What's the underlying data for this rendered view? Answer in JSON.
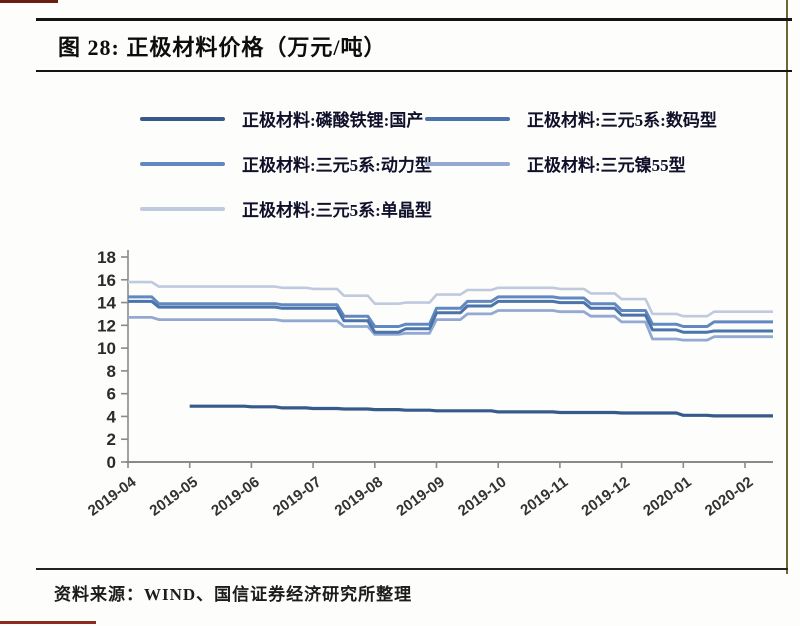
{
  "page": {
    "title": "图 28:  正极材料价格（万元/吨）",
    "source_text": "资料来源：WIND、国信证券经济研究所整理"
  },
  "legend": {
    "items": [
      {
        "label": "正极材料:磷酸铁锂:国产",
        "color": "#365a8c"
      },
      {
        "label": "正极材料:三元5系:数码型",
        "color": "#4a74ab"
      },
      {
        "label": "正极材料:三元5系:动力型",
        "color": "#6189c0"
      },
      {
        "label": "正极材料:三元镍55型",
        "color": "#93a9d1"
      },
      {
        "label": "正极材料:三元5系:单晶型",
        "color": "#bfcade"
      }
    ]
  },
  "chart_data": {
    "type": "line",
    "title": "正极材料价格（万元/吨）",
    "ylabel": "价格（万元/吨）",
    "xlabel": "",
    "ylim": [
      0,
      18
    ],
    "y_ticks": [
      0,
      2,
      4,
      6,
      8,
      10,
      12,
      14,
      16,
      18
    ],
    "x_tick_labels": [
      "2019-04",
      "2019-05",
      "2019-06",
      "2019-07",
      "2019-08",
      "2019-09",
      "2019-10",
      "2019-11",
      "2019-12",
      "2020-01",
      "2020-02"
    ],
    "x_months_from_2019_04": [
      0,
      0.5,
      1,
      1.5,
      2,
      2.5,
      3,
      3.5,
      4,
      4.5,
      5,
      5.5,
      6,
      6.5,
      7,
      7.5,
      8,
      8.5,
      9,
      9.5,
      10
    ],
    "grid": false,
    "legend_position": "top",
    "line_style": "stepped",
    "series": [
      {
        "name": "正极材料:磷酸铁锂:国产",
        "color": "#365a8c",
        "width": 3.2,
        "values": [
          null,
          null,
          4.9,
          4.9,
          4.85,
          4.75,
          4.7,
          4.65,
          4.6,
          4.55,
          4.5,
          4.5,
          4.4,
          4.4,
          4.35,
          4.35,
          4.3,
          4.3,
          4.1,
          4.05,
          4.05
        ]
      },
      {
        "name": "正极材料:三元5系:数码型",
        "color": "#4a74ab",
        "width": 3,
        "values": [
          14.1,
          13.6,
          13.6,
          13.6,
          13.6,
          13.5,
          13.5,
          12.4,
          11.4,
          11.7,
          13.1,
          13.7,
          14.1,
          14.1,
          14.0,
          13.5,
          12.9,
          11.6,
          11.4,
          11.5,
          11.5
        ]
      },
      {
        "name": "正极材料:三元5系:动力型",
        "color": "#6189c0",
        "width": 3,
        "values": [
          14.5,
          13.9,
          13.9,
          13.9,
          13.9,
          13.8,
          13.8,
          12.8,
          11.9,
          12.1,
          13.5,
          14.1,
          14.5,
          14.5,
          14.4,
          13.9,
          13.3,
          12.1,
          11.9,
          12.3,
          12.3
        ]
      },
      {
        "name": "正极材料:三元镍55型",
        "color": "#93a9d1",
        "width": 2.8,
        "values": [
          12.7,
          12.5,
          12.5,
          12.5,
          12.5,
          12.4,
          12.4,
          11.9,
          11.2,
          11.3,
          12.5,
          13.0,
          13.3,
          13.3,
          13.2,
          12.8,
          12.3,
          10.8,
          10.7,
          11.0,
          11.0
        ]
      },
      {
        "name": "正极材料:三元5系:单晶型",
        "color": "#bfcade",
        "width": 2.6,
        "values": [
          15.8,
          15.4,
          15.4,
          15.4,
          15.4,
          15.3,
          15.2,
          14.6,
          13.9,
          14.0,
          14.7,
          15.1,
          15.3,
          15.3,
          15.2,
          14.8,
          14.3,
          13.0,
          12.8,
          13.2,
          13.2
        ]
      }
    ]
  }
}
